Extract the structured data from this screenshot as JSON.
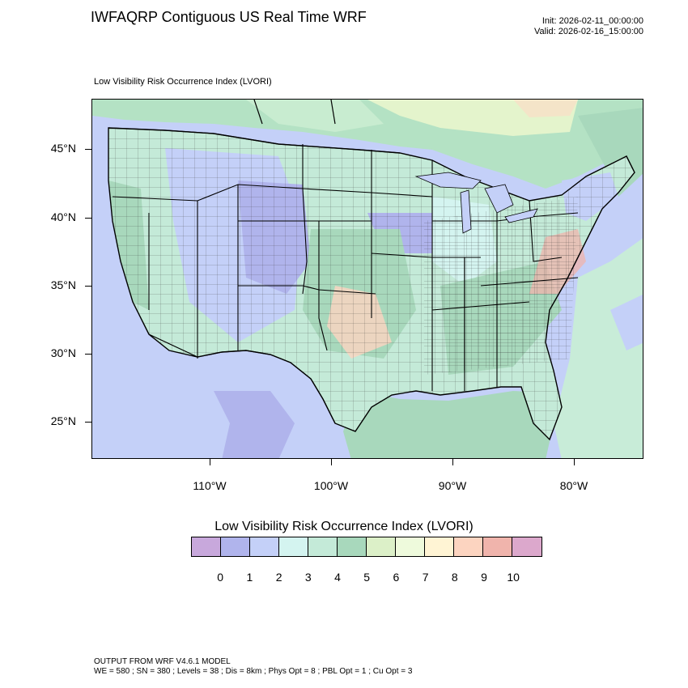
{
  "header": {
    "title": "IWFAQRP Contiguous US Real Time WRF",
    "init": "Init: 2026-02-11_00:00:00",
    "valid": "Valid: 2026-02-16_15:00:00"
  },
  "map": {
    "subtitle": "Low Visibility Risk Occurrence Index   (LVORI)",
    "lat_labels": [
      "45°N",
      "40°N",
      "35°N",
      "30°N",
      "25°N"
    ],
    "lon_labels": [
      "110°W",
      "100°W",
      "90°W",
      "80°W"
    ]
  },
  "colorbar": {
    "title": "Low Visibility Risk Occurrence Index  (LVORI)",
    "colors": [
      "#c8a8dc",
      "#b0b4ec",
      "#c4d0f8",
      "#d4f4f0",
      "#c4ead8",
      "#a8d8bc",
      "#dcf0c8",
      "#eefadc",
      "#fff4d4",
      "#fcd4c0",
      "#f0b4ac",
      "#dca8cc"
    ],
    "labels": [
      "0",
      "1",
      "2",
      "3",
      "4",
      "5",
      "6",
      "7",
      "8",
      "9",
      "10"
    ]
  },
  "footer": {
    "line1": "OUTPUT FROM WRF V4.6.1 MODEL",
    "line2": "WE = 580 ; SN = 380 ; Levels = 38 ; Dis = 8km ; Phys Opt = 8 ; PBL Opt = 1 ; Cu Opt = 3"
  }
}
